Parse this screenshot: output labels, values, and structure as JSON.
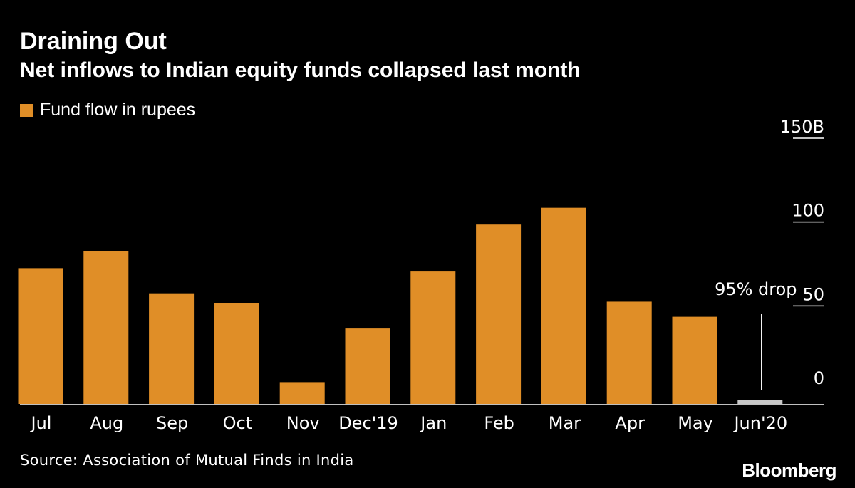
{
  "header": {
    "title": "Draining Out",
    "subtitle": "Net inflows to Indian equity funds collapsed last month"
  },
  "footer": {
    "source": "Source: Association of Mutual Finds in India",
    "logo": "Bloomberg"
  },
  "colors": {
    "background": "#000000",
    "bar": "#E08E27",
    "highlight_bar": "#C8C8C8",
    "text": "#FFFFFF"
  },
  "chart_data": {
    "type": "bar",
    "categories": [
      "Jul",
      "Aug",
      "Sep",
      "Oct",
      "Nov",
      "Dec'19",
      "Jan",
      "Feb",
      "Mar",
      "Apr",
      "May",
      "Jun'20"
    ],
    "series": [
      {
        "name": "Fund flow in rupees",
        "values": [
          81,
          91,
          66,
          60,
          13,
          45,
          79,
          107,
          117,
          61,
          52,
          2.4
        ]
      }
    ],
    "highlight_index": 11,
    "ylim": [
      0,
      150
    ],
    "y_ticks": [
      0,
      50,
      100,
      150
    ],
    "y_tick_labels": [
      "0",
      "50",
      "100",
      "150B"
    ],
    "y_axis_position": "right",
    "annotation": {
      "text": "95% drop",
      "category_index": 11
    },
    "legend_position": "top-left",
    "grid": false
  }
}
